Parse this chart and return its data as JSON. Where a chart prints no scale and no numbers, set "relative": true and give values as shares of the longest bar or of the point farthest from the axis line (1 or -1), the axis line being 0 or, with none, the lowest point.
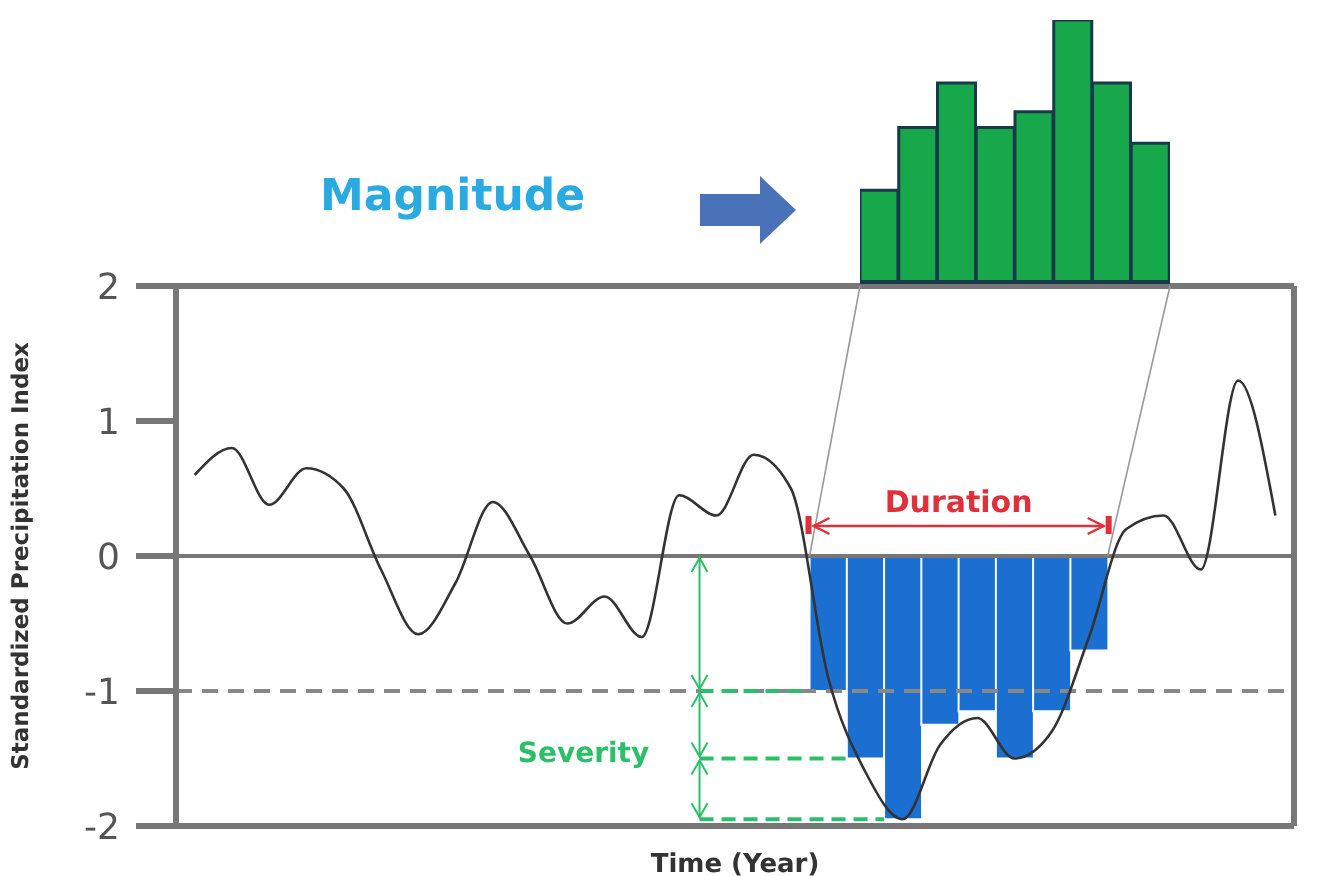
{
  "chart_data": [
    {
      "type": "line",
      "ylabel": "Standardized Precipitation Index",
      "xlabel": "Time (Year)",
      "categories": [
        null,
        null,
        null,
        null,
        null,
        null,
        null,
        null,
        null,
        null,
        null,
        null,
        null,
        null,
        null,
        null,
        null,
        null,
        null,
        null,
        null,
        null,
        null,
        null,
        null,
        null,
        null,
        null,
        null,
        null
      ],
      "series": [
        {
          "type": "bar",
          "color": "#1a6fd0",
          "values": [
            null,
            null,
            null,
            null,
            null,
            null,
            null,
            null,
            null,
            null,
            null,
            null,
            null,
            null,
            null,
            null,
            null,
            -1.0,
            -1.5,
            -1.95,
            -1.25,
            -1.15,
            -1.5,
            -1.15,
            -0.7,
            null,
            null,
            null,
            null,
            null
          ]
        },
        {
          "type": "line",
          "color": "#333333",
          "values": [
            0.6,
            0.8,
            0.38,
            0.65,
            0.5,
            -0.1,
            -0.58,
            -0.2,
            0.4,
            0.0,
            -0.5,
            -0.3,
            -0.6,
            0.45,
            0.3,
            0.75,
            0.5,
            -0.9,
            -1.6,
            -1.95,
            -1.4,
            -1.2,
            -1.5,
            -1.3,
            -0.6,
            0.2,
            0.3,
            -0.1,
            1.3,
            0.3
          ]
        }
      ],
      "ylim": [
        -2,
        2
      ],
      "yticks": [
        -2,
        -1,
        0,
        1,
        2
      ],
      "tick_labels": "y",
      "marker": "none",
      "ref_lines": [
        {
          "axis": "y",
          "value": -1,
          "color": "#888888",
          "line_style": "dashed"
        },
        {
          "axis": "y",
          "value": 0,
          "color": "#777777",
          "line_style": "solid"
        }
      ],
      "annotations": [
        "Duration",
        "Severity"
      ]
    },
    {
      "type": "bar",
      "relative": true,
      "categories": [
        null,
        null,
        null,
        null,
        null,
        null,
        null,
        null
      ],
      "color": "#17a84b",
      "values": [
        0.35,
        0.59,
        0.76,
        0.59,
        0.65,
        1,
        0.76,
        0.53
      ],
      "annotations": [
        "Magnitude"
      ]
    }
  ]
}
